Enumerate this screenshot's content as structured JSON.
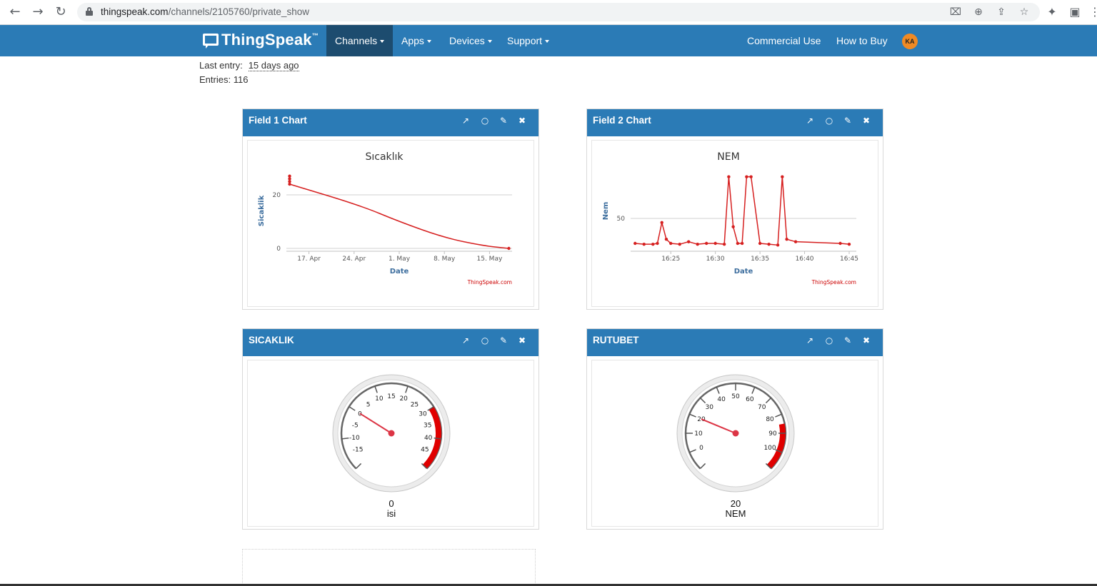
{
  "browser": {
    "url_host": "thingspeak.com",
    "url_path": "/channels/2105760/private_show"
  },
  "nav": {
    "brand": "ThingSpeak",
    "brand_tm": "™",
    "items": [
      {
        "label": "Channels"
      },
      {
        "label": "Apps"
      },
      {
        "label": "Devices"
      },
      {
        "label": "Support"
      }
    ],
    "right_items": [
      {
        "label": "Commercial Use"
      },
      {
        "label": "How to Buy"
      }
    ],
    "avatar": "KA"
  },
  "channel": {
    "last_entry_label": "Last entry:",
    "last_entry_value": "15 days ago",
    "entries_label": "Entries:",
    "entries_value": "116"
  },
  "panels": [
    {
      "title": "Field 1 Chart",
      "chart_data": {
        "type": "line",
        "title": "Sıcaklık",
        "xlabel": "Date",
        "ylabel": "Sicaklik",
        "credit": "ThingSpeak.com",
        "x_ticks": [
          "17. Apr",
          "24. Apr",
          "1. May",
          "8. May",
          "15. May"
        ],
        "y_ticks": [
          0,
          20
        ],
        "color": "#d62020",
        "points": [
          {
            "x": "Apr 14",
            "y": 27
          },
          {
            "x": "Apr 14",
            "y": 26
          },
          {
            "x": "Apr 14",
            "y": 25
          },
          {
            "x": "Apr 14",
            "y": 24
          },
          {
            "x": "Apr 25",
            "y": 16
          },
          {
            "x": "May 1",
            "y": 10
          },
          {
            "x": "May 8",
            "y": 4
          },
          {
            "x": "May 14",
            "y": 1
          },
          {
            "x": "May 18",
            "y": 0
          }
        ]
      }
    },
    {
      "title": "Field 2 Chart",
      "chart_data": {
        "type": "line",
        "title": "NEM",
        "xlabel": "Date",
        "ylabel": "Nem",
        "credit": "ThingSpeak.com",
        "x_ticks": [
          "16:25",
          "16:30",
          "16:35",
          "16:40",
          "16:45"
        ],
        "y_ticks": [
          50
        ],
        "color": "#d62020",
        "points": [
          {
            "x": "16:21",
            "y": 20
          },
          {
            "x": "16:22",
            "y": 19
          },
          {
            "x": "16:23",
            "y": 19
          },
          {
            "x": "16:23.5",
            "y": 20
          },
          {
            "x": "16:24",
            "y": 45
          },
          {
            "x": "16:24.5",
            "y": 25
          },
          {
            "x": "16:25",
            "y": 20
          },
          {
            "x": "16:26",
            "y": 19
          },
          {
            "x": "16:27",
            "y": 22
          },
          {
            "x": "16:28",
            "y": 19
          },
          {
            "x": "16:29",
            "y": 20
          },
          {
            "x": "16:30",
            "y": 20
          },
          {
            "x": "16:31",
            "y": 19
          },
          {
            "x": "16:31.5",
            "y": 100
          },
          {
            "x": "16:32",
            "y": 40
          },
          {
            "x": "16:32.5",
            "y": 20
          },
          {
            "x": "16:33",
            "y": 20
          },
          {
            "x": "16:33.5",
            "y": 100
          },
          {
            "x": "16:34",
            "y": 100
          },
          {
            "x": "16:35",
            "y": 20
          },
          {
            "x": "16:36",
            "y": 19
          },
          {
            "x": "16:37",
            "y": 18
          },
          {
            "x": "16:37.5",
            "y": 100
          },
          {
            "x": "16:38",
            "y": 25
          },
          {
            "x": "16:39",
            "y": 22
          },
          {
            "x": "16:44",
            "y": 20
          },
          {
            "x": "16:45",
            "y": 19
          }
        ]
      }
    },
    {
      "title": "SICAKLIK",
      "gauge": {
        "value": "0",
        "label": "isi",
        "min": -20,
        "max": 50,
        "ticks": [
          "-15",
          "-10",
          "-5",
          "0",
          "5",
          "10",
          "15",
          "20",
          "25",
          "30",
          "35",
          "40",
          "45"
        ],
        "red_from": 30,
        "red_to": 50
      }
    },
    {
      "title": "RUTUBET",
      "gauge": {
        "value": "20",
        "label": "NEM",
        "min": -10,
        "max": 110,
        "ticks": [
          "0",
          "10",
          "20",
          "30",
          "40",
          "50",
          "60",
          "70",
          "80",
          "90",
          "100"
        ],
        "red_from": 85,
        "red_to": 110
      }
    }
  ],
  "colors": {
    "navbar": "#2b7bb6",
    "navbar_active": "#1d4c6f",
    "chart_line": "#d62020",
    "gauge_red": "#e00000",
    "avatar": "#f08a24"
  }
}
